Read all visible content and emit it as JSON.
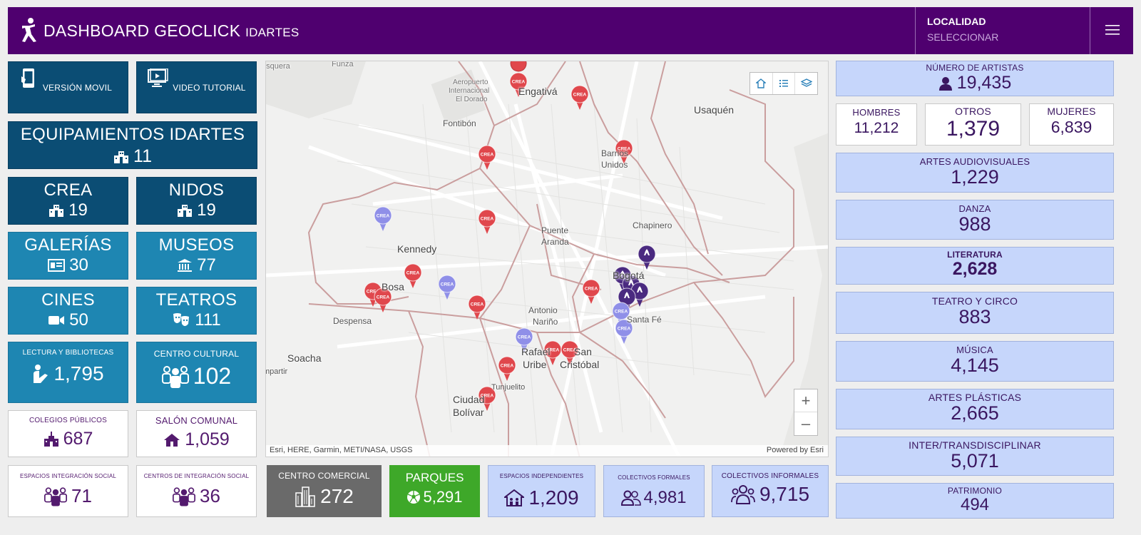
{
  "header": {
    "title": "DASHBOARD GEOCLICK",
    "subtitle": "IDARTES",
    "locality_label": "LOCALIDAD",
    "locality_value": "SELECCIONAR"
  },
  "left": {
    "mobile_label": "VERSIÓN MOVIL",
    "video_label": "VIDEO TUTORIAL",
    "equip": {
      "label": "EQUIPAMIENTOS IDARTES",
      "value": "11"
    },
    "crea": {
      "label": "CREA",
      "value": "19"
    },
    "nidos": {
      "label": "NIDOS",
      "value": "19"
    },
    "galerias": {
      "label": "GALERÍAS",
      "value": "30"
    },
    "museos": {
      "label": "MUSEOS",
      "value": "77"
    },
    "cines": {
      "label": "CINES",
      "value": "50"
    },
    "teatros": {
      "label": "TEATROS",
      "value": "111"
    },
    "lectura": {
      "label": "LECTURA Y BIBLIOTECAS",
      "value": "1,795"
    },
    "centro_cultural": {
      "label": "CENTRO CULTURAL",
      "value": "102"
    },
    "colegios": {
      "label": "COLEGIOS PÚBLICOS",
      "value": "687"
    },
    "salon": {
      "label": "SALÓN COMUNAL",
      "value": "1,059"
    },
    "espacios_integracion": {
      "label": "ESPACIOS INTEGRACIÓN SOCIAL",
      "value": "71"
    },
    "centros_integracion": {
      "label": "CENTROS DE INTEGRACIÓN SOCIAL",
      "value": "36"
    }
  },
  "bottom": {
    "comercial": {
      "label": "CENTRO COMERCIAL",
      "value": "272"
    },
    "parques": {
      "label": "PARQUES",
      "value": "5,291"
    },
    "independientes": {
      "label": "ESPACIOS INDEPENDIENTES",
      "value": "1,209"
    },
    "formales": {
      "label": "COLECTIVOS FORMALES",
      "value": "4,981"
    },
    "informales": {
      "label": "COLECTIVOS INFORMALES",
      "value": "9,715"
    }
  },
  "map": {
    "places": [
      "osquera",
      "Funza",
      "Aeropuerto",
      "Internacional",
      "El Dorado",
      "Engativá",
      "Usaquén",
      "Fontibón",
      "Barrios",
      "Unidos",
      "Chapinero",
      "Puente",
      "Aranda",
      "Kennedy",
      "Bogotá",
      "Bosa",
      "Santa Fé",
      "Antonio",
      "Nariño",
      "Despensa",
      "Soacha",
      "Rafael",
      "Uribe",
      "San",
      "Cristóbal",
      "mpartir",
      "Tunjuelito",
      "Ciudad",
      "Bolívar"
    ],
    "attribution": "Esri, HERE, Garmin, METI/NASA, USGS",
    "powered": "Powered by Esri",
    "zoom_in": "+",
    "zoom_out": "–",
    "pin_text": "CREA"
  },
  "right": {
    "artistas": {
      "label": "NÚMERO DE ARTISTAS",
      "value": "19,435"
    },
    "hombres": {
      "label": "HOMBRES",
      "value": "11,212"
    },
    "otros": {
      "label": "OTROS",
      "value": "1,379"
    },
    "mujeres": {
      "label": "MUJERES",
      "value": "6,839"
    },
    "stats": [
      {
        "label": "ARTES AUDIOVISUALES",
        "value": "1,229"
      },
      {
        "label": "DANZA",
        "value": "988"
      },
      {
        "label": "LITERATURA",
        "value": "2,628"
      },
      {
        "label": "TEATRO Y CIRCO",
        "value": "883"
      },
      {
        "label": "MÚSICA",
        "value": "4,145"
      },
      {
        "label": "ARTES PLÁSTICAS",
        "value": "2,665"
      },
      {
        "label": "INTER/TRANSDISCIPLINAR",
        "value": "5,071"
      },
      {
        "label": "PATRIMONIO",
        "value": "494"
      }
    ]
  },
  "colors": {
    "header": "#4f006f",
    "navy": "#0b4d74",
    "teal": "#1e86b2",
    "lavender": "#c6d6fb",
    "gray": "#6a6a6a",
    "green": "#3ea829",
    "pin_red": "#e0474c",
    "pin_lavender": "#8f8fe8",
    "pin_purple": "#4a2a80"
  }
}
